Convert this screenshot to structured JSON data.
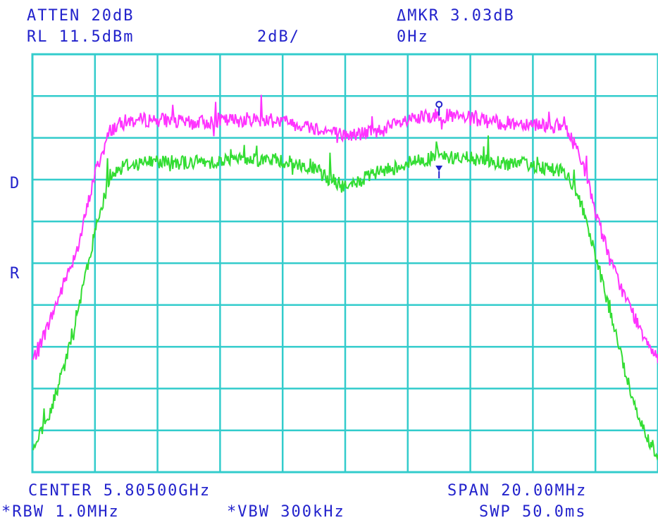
{
  "header": {
    "atten": "ATTEN 20dB",
    "ref_level": "RL 11.5dBm",
    "scale": "2dB/",
    "delta_marker": "ΔMKR 3.03dB",
    "marker_freq": "0Hz"
  },
  "side": {
    "d_label": "D",
    "r_label": "R"
  },
  "footer": {
    "center": "CENTER 5.80500GHz",
    "span": "SPAN 20.00MHz",
    "rbw": "*RBW 1.0MHz",
    "vbw": "*VBW 300kHz",
    "sweep": "SWP 50.0ms"
  },
  "colors": {
    "background": "#ffffff",
    "grid": "#33cccc",
    "trace_1": "#ff33ff",
    "trace_2": "#33dd33",
    "marker": "#2222cc",
    "text": "#2222cc"
  },
  "chart_data": {
    "type": "line",
    "x_unit": "MHz offset from center",
    "xlim": [
      -10,
      10
    ],
    "ylim": [
      -8.5,
      11.5
    ],
    "grid": true,
    "x": [
      -10,
      -9.5,
      -9,
      -8.5,
      -8,
      -7.5,
      -7,
      -6,
      -5,
      -4,
      -3,
      -2,
      -1,
      0,
      1,
      2,
      3,
      4,
      5,
      6,
      7,
      7.5,
      8,
      8.5,
      9,
      9.5,
      10
    ],
    "series": [
      {
        "values": [
          -3.2,
          -1.5,
          0.5,
          2.5,
          5.8,
          7.9,
          8.3,
          8.4,
          8.2,
          8.3,
          8.4,
          8.3,
          8.0,
          7.6,
          7.8,
          8.3,
          8.6,
          8.4,
          8.2,
          8.2,
          8.0,
          6.8,
          4.0,
          1.5,
          -0.3,
          -1.8,
          -3.0
        ],
        "marker": 8.9
      },
      {
        "values": [
          -7.5,
          -6.0,
          -3.5,
          -0.5,
          3.0,
          5.8,
          6.2,
          6.4,
          6.3,
          6.4,
          6.5,
          6.4,
          6.0,
          5.1,
          5.8,
          6.3,
          6.6,
          6.5,
          6.3,
          6.2,
          5.9,
          4.5,
          1.8,
          -1.0,
          -4.0,
          -6.3,
          -7.8
        ],
        "marker": 5.9
      }
    ]
  }
}
